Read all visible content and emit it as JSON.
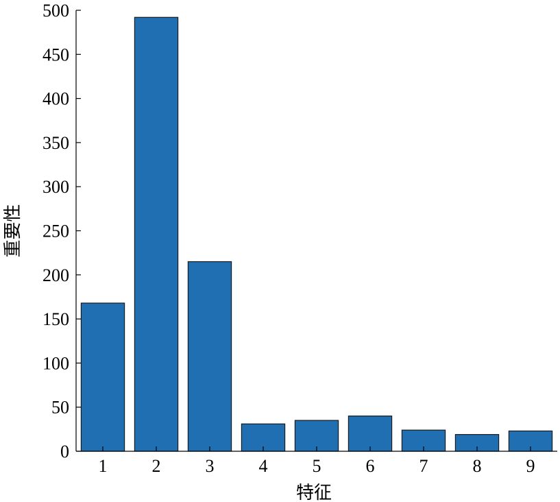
{
  "chart_data": {
    "type": "bar",
    "title": "",
    "xlabel": "特征",
    "ylabel": "重要性",
    "categories": [
      "1",
      "2",
      "3",
      "4",
      "5",
      "6",
      "7",
      "8",
      "9"
    ],
    "values": [
      168,
      492,
      215,
      31,
      35,
      40,
      24,
      19,
      23
    ],
    "ylim": [
      0,
      500
    ],
    "yticks": [
      0,
      50,
      100,
      150,
      200,
      250,
      300,
      350,
      400,
      450,
      500
    ],
    "bar_color": "#1f6fb2",
    "grid": false
  }
}
